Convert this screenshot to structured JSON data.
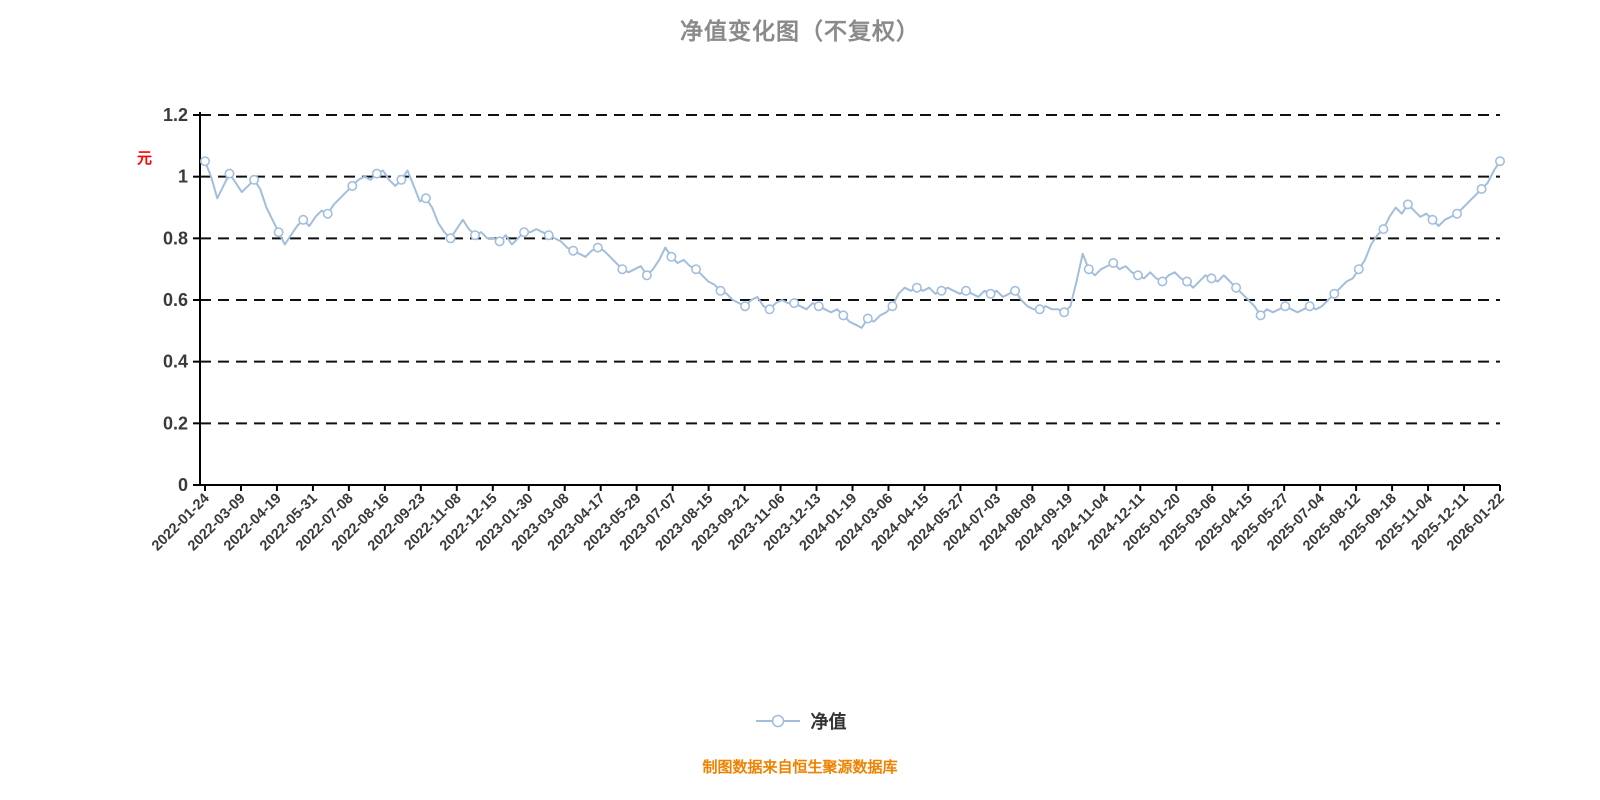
{
  "unit_label": "元",
  "caption": "制图数据来自恒生聚源数据库",
  "colors": {
    "line": "#a3bedd",
    "marker_fill": "#ffffff",
    "grid": "#111111",
    "axis": "#000000",
    "tick_text": "#3a3a3a",
    "title": "#8a8a8a",
    "caption": "#ef8200",
    "unit": "#ff0000"
  },
  "chart_data": {
    "type": "line",
    "title": "净值变化图（不复权）",
    "xlabel": "",
    "ylabel": "",
    "ylim": [
      0,
      1.2
    ],
    "y_ticks": [
      0,
      0.2,
      0.4,
      0.6,
      0.8,
      1,
      1.2
    ],
    "y_tick_labels": [
      "0",
      "0.2",
      "0.4",
      "0.6",
      "0.8",
      "1",
      "1.2"
    ],
    "grid": "dashed-horizontal",
    "legend_position": "bottom-center",
    "x_tick_labels": [
      "2022-01-24",
      "2022-03-09",
      "2022-04-19",
      "2022-05-31",
      "2022-07-08",
      "2022-08-16",
      "2022-09-23",
      "2022-11-08",
      "2022-12-15",
      "2023-01-30",
      "2023-03-08",
      "2023-04-17",
      "2023-05-29",
      "2023-07-07",
      "2023-08-15",
      "2023-09-21",
      "2023-11-06",
      "2023-12-13",
      "2024-01-19",
      "2024-03-06",
      "2024-04-15",
      "2024-05-27",
      "2024-07-03",
      "2024-08-09",
      "2024-09-19",
      "2024-11-04",
      "2024-12-11",
      "2025-01-20",
      "2025-03-06",
      "2025-04-15",
      "2025-05-27",
      "2025-07-04",
      "2025-08-12",
      "2025-09-18",
      "2025-11-04",
      "2025-12-11",
      "2026-01-22"
    ],
    "series": [
      {
        "name": "净值",
        "values": [
          1.05,
          1.0,
          0.93,
          0.97,
          1.01,
          0.98,
          0.95,
          0.97,
          0.99,
          0.96,
          0.9,
          0.86,
          0.82,
          0.78,
          0.81,
          0.84,
          0.86,
          0.84,
          0.87,
          0.89,
          0.88,
          0.91,
          0.93,
          0.95,
          0.97,
          0.99,
          1.0,
          0.99,
          1.01,
          1.02,
          0.99,
          0.97,
          0.99,
          1.02,
          0.97,
          0.92,
          0.93,
          0.9,
          0.85,
          0.82,
          0.8,
          0.83,
          0.86,
          0.83,
          0.81,
          0.82,
          0.8,
          0.8,
          0.79,
          0.81,
          0.78,
          0.8,
          0.82,
          0.82,
          0.83,
          0.82,
          0.81,
          0.8,
          0.79,
          0.77,
          0.76,
          0.75,
          0.74,
          0.76,
          0.77,
          0.76,
          0.74,
          0.72,
          0.7,
          0.69,
          0.7,
          0.71,
          0.68,
          0.7,
          0.73,
          0.77,
          0.74,
          0.72,
          0.73,
          0.71,
          0.7,
          0.68,
          0.66,
          0.65,
          0.63,
          0.62,
          0.6,
          0.59,
          0.58,
          0.6,
          0.61,
          0.58,
          0.57,
          0.59,
          0.6,
          0.59,
          0.59,
          0.58,
          0.57,
          0.59,
          0.58,
          0.57,
          0.56,
          0.57,
          0.55,
          0.53,
          0.52,
          0.51,
          0.54,
          0.53,
          0.55,
          0.56,
          0.58,
          0.62,
          0.64,
          0.63,
          0.64,
          0.63,
          0.64,
          0.62,
          0.63,
          0.64,
          0.63,
          0.62,
          0.63,
          0.62,
          0.61,
          0.63,
          0.62,
          0.63,
          0.61,
          0.62,
          0.63,
          0.6,
          0.58,
          0.57,
          0.57,
          0.58,
          0.57,
          0.57,
          0.56,
          0.58,
          0.66,
          0.75,
          0.7,
          0.68,
          0.7,
          0.71,
          0.72,
          0.7,
          0.71,
          0.69,
          0.68,
          0.67,
          0.69,
          0.67,
          0.66,
          0.68,
          0.69,
          0.67,
          0.66,
          0.64,
          0.66,
          0.68,
          0.67,
          0.66,
          0.68,
          0.66,
          0.64,
          0.62,
          0.6,
          0.58,
          0.55,
          0.57,
          0.56,
          0.57,
          0.58,
          0.57,
          0.56,
          0.57,
          0.58,
          0.57,
          0.58,
          0.6,
          0.62,
          0.64,
          0.66,
          0.67,
          0.7,
          0.73,
          0.78,
          0.81,
          0.83,
          0.87,
          0.9,
          0.88,
          0.91,
          0.89,
          0.87,
          0.88,
          0.86,
          0.84,
          0.86,
          0.87,
          0.88,
          0.9,
          0.92,
          0.94,
          0.96,
          0.98,
          1.02,
          1.05
        ]
      }
    ]
  }
}
